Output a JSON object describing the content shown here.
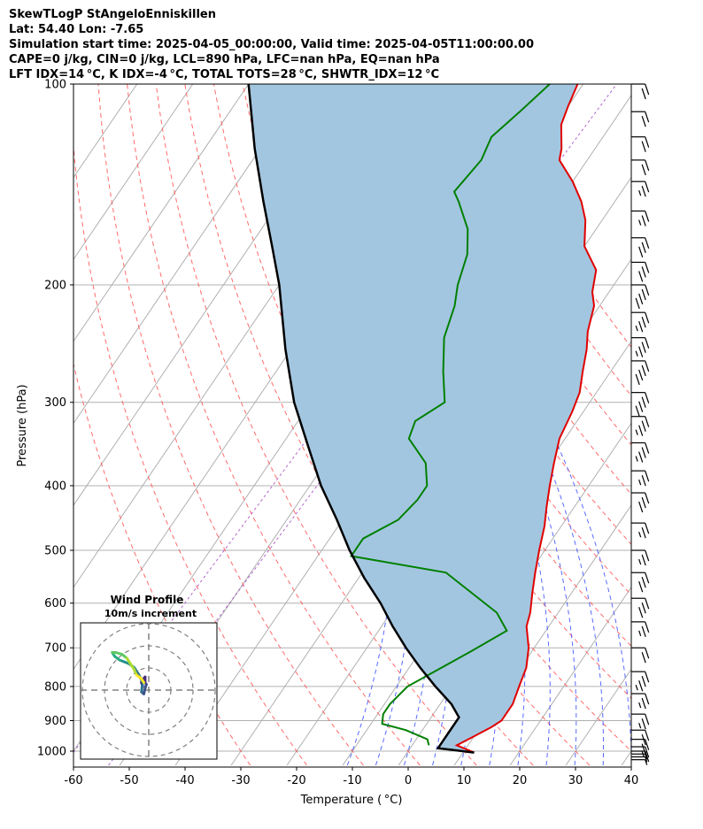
{
  "header": {
    "line1": "SkewTLogP StAngeloEnniskillen",
    "line2": "Lat: 54.40   Lon: -7.65",
    "line3": "Simulation start time: 2025-04-05_00:00:00, Valid time: 2025-04-05T11:00:00.00",
    "line4": "CAPE=0 j/kg, CIN=0 j/kg, LCL=890 hPa, LFC=nan hPa, EQ=nan hPa",
    "line5": "LFT IDX=14 °C, K IDX=-4 °C, TOTAL TOTS=28 °C, SHWTR_IDX=12 °C"
  },
  "chart_data": {
    "type": "line",
    "subtype": "skewt-logp",
    "xlabel": "Temperature ( °C)",
    "ylabel": "Pressure (hPa)",
    "xlim": [
      -60,
      40
    ],
    "ylim": [
      1050,
      100
    ],
    "x_ticks": [
      "-60",
      "-50",
      "-40",
      "-30",
      "-20",
      "-10",
      "0",
      "10",
      "20",
      "30",
      "40"
    ],
    "y_ticks": [
      "100",
      "200",
      "300",
      "400",
      "500",
      "600",
      "700",
      "800",
      "900",
      "1000"
    ],
    "grid": true,
    "series": [
      {
        "name": "Temperature",
        "color": "#e00000",
        "points": [
          [
            12,
            1005
          ],
          [
            8,
            980
          ],
          [
            10,
            950
          ],
          [
            12,
            920
          ],
          [
            13,
            900
          ],
          [
            13,
            850
          ],
          [
            12,
            800
          ],
          [
            11,
            750
          ],
          [
            9,
            700
          ],
          [
            6,
            650
          ],
          [
            5,
            620
          ],
          [
            3,
            580
          ],
          [
            1,
            540
          ],
          [
            -1,
            500
          ],
          [
            -3,
            460
          ],
          [
            -5,
            430
          ],
          [
            -7,
            400
          ],
          [
            -9,
            370
          ],
          [
            -11,
            340
          ],
          [
            -12,
            310
          ],
          [
            -13,
            290
          ],
          [
            -15,
            270
          ],
          [
            -17,
            250
          ],
          [
            -19,
            235
          ],
          [
            -21,
            215
          ],
          [
            -23,
            205
          ],
          [
            -25,
            190
          ],
          [
            -30,
            175
          ],
          [
            -33,
            160
          ],
          [
            -36,
            150
          ],
          [
            -40,
            140
          ],
          [
            -45,
            130
          ],
          [
            -46,
            125
          ],
          [
            -49,
            115
          ],
          [
            -50,
            108
          ],
          [
            -51,
            100
          ]
        ]
      },
      {
        "name": "Dewpoint",
        "color": "#008000",
        "points": [
          [
            3,
            980
          ],
          [
            2,
            960
          ],
          [
            -3,
            930
          ],
          [
            -8,
            910
          ],
          [
            -9,
            880
          ],
          [
            -9,
            850
          ],
          [
            -8,
            800
          ],
          [
            -5,
            760
          ],
          [
            -1,
            710
          ],
          [
            3,
            660
          ],
          [
            -1,
            620
          ],
          [
            -15,
            540
          ],
          [
            -34,
            510
          ],
          [
            -34,
            480
          ],
          [
            -30,
            450
          ],
          [
            -29,
            420
          ],
          [
            -29,
            400
          ],
          [
            -32,
            370
          ],
          [
            -38,
            340
          ],
          [
            -39,
            320
          ],
          [
            -36,
            300
          ],
          [
            -40,
            270
          ],
          [
            -44,
            240
          ],
          [
            -46,
            215
          ],
          [
            -48,
            200
          ],
          [
            -50,
            180
          ],
          [
            -53,
            165
          ],
          [
            -58,
            150
          ],
          [
            -60,
            145
          ],
          [
            -59,
            130
          ],
          [
            -60,
            120
          ],
          [
            -58,
            110
          ],
          [
            -56,
            100
          ]
        ]
      },
      {
        "name": "Parcel",
        "color": "#000000",
        "points": [
          [
            12,
            1005
          ],
          [
            5,
            990
          ],
          [
            5,
            890
          ],
          [
            2,
            850
          ],
          [
            -3,
            800
          ],
          [
            -8,
            750
          ],
          [
            -13,
            700
          ],
          [
            -18,
            650
          ],
          [
            -23,
            600
          ],
          [
            -29,
            550
          ],
          [
            -35,
            500
          ],
          [
            -41,
            450
          ],
          [
            -48,
            400
          ],
          [
            -55,
            350
          ],
          [
            -63,
            300
          ],
          [
            -71,
            250
          ],
          [
            -80,
            200
          ],
          [
            -86,
            175
          ],
          [
            -93,
            150
          ],
          [
            -101,
            125
          ],
          [
            -110,
            100
          ]
        ]
      }
    ],
    "shading": {
      "name": "Parcel-Temperature gap",
      "color": "#a3c6e0"
    },
    "wind_barbs": {
      "pressures": [
        1030,
        1020,
        1010,
        1000,
        985,
        960,
        930,
        880,
        820,
        760,
        700,
        640,
        590,
        540,
        500,
        455,
        410,
        380,
        345,
        315,
        290,
        260,
        240,
        220,
        200,
        185,
        170,
        155,
        140,
        130,
        120,
        110,
        100
      ],
      "speed_kt": [
        5,
        5,
        5,
        10,
        15,
        20,
        20,
        25,
        25,
        35,
        20,
        25,
        30,
        30,
        25,
        25,
        30,
        25,
        35,
        35,
        40,
        40,
        35,
        35,
        40,
        30,
        30,
        25,
        25,
        20,
        20,
        20,
        20
      ]
    },
    "inset": {
      "title": "Wind Profile",
      "subtitle": "10m/s increment",
      "rings_ms": [
        10,
        20,
        30
      ],
      "hodograph_uv": [
        [
          -5,
          2
        ],
        [
          -6,
          4
        ],
        [
          -5,
          6
        ],
        [
          -4,
          6
        ],
        [
          -3,
          7
        ],
        [
          -3,
          4
        ],
        [
          -2,
          3
        ],
        [
          -3,
          1
        ],
        [
          -4,
          -2
        ],
        [
          -6,
          -1
        ],
        [
          -5,
          4
        ],
        [
          -8,
          8
        ],
        [
          -12,
          12
        ],
        [
          -16,
          14
        ],
        [
          -20,
          15
        ],
        [
          -24,
          16
        ],
        [
          -26,
          17
        ],
        [
          -28,
          18
        ],
        [
          -30,
          20
        ],
        [
          -27,
          20
        ],
        [
          -22,
          19
        ],
        [
          -18,
          17
        ],
        [
          -15,
          14
        ],
        [
          -12,
          11
        ],
        [
          -10,
          8
        ],
        [
          -8,
          7
        ],
        [
          -6,
          6
        ],
        [
          -4,
          4
        ]
      ]
    }
  }
}
